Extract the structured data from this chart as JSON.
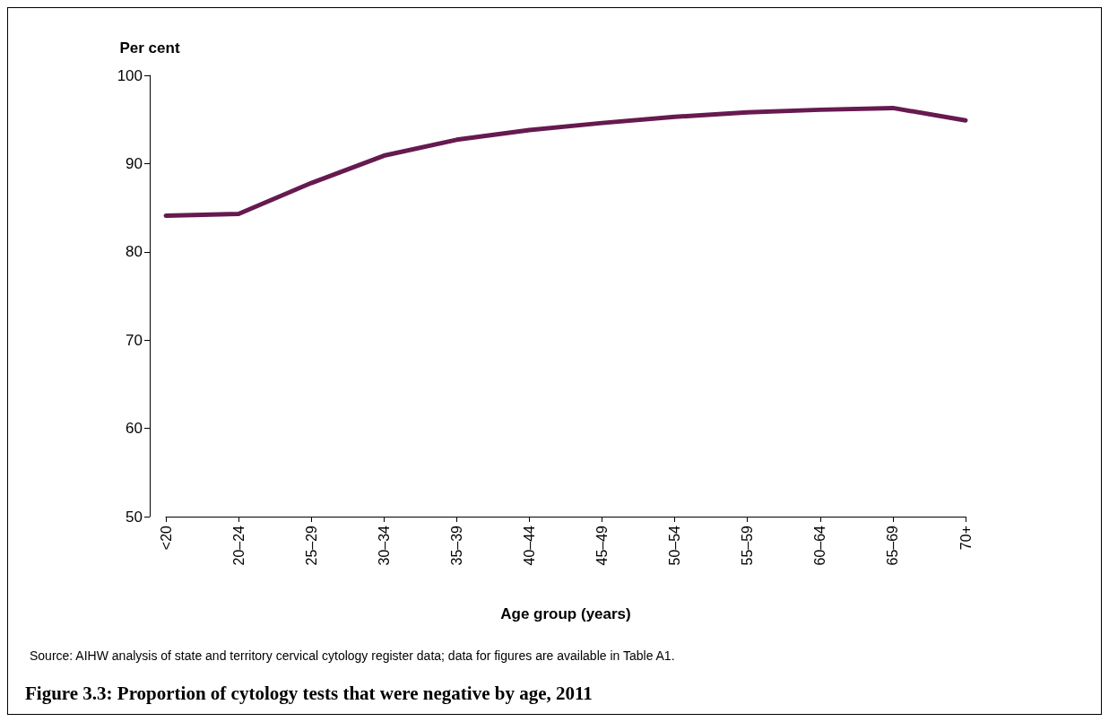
{
  "chart_data": {
    "type": "line",
    "title": "Figure 3.3: Proportion of cytology tests that were negative by age, 2011",
    "xlabel": "Age group (years)",
    "ylabel": "Per cent",
    "categories": [
      "<20",
      "20–24",
      "25–29",
      "30–34",
      "35–39",
      "40–44",
      "45–49",
      "50–54",
      "55–59",
      "60–64",
      "65–69",
      "70+"
    ],
    "series": [
      {
        "color": "#661a4f",
        "values": [
          84.1,
          84.3,
          87.8,
          90.9,
          92.7,
          93.8,
          94.6,
          95.3,
          95.8,
          96.1,
          96.3,
          94.9
        ]
      }
    ],
    "ylim": [
      50,
      100
    ],
    "yticks": [
      50,
      60,
      70,
      80,
      90,
      100
    ],
    "grid": false,
    "marker": "none",
    "line_style": "solid",
    "annotations": [
      "Source: AIHW analysis of state and territory cervical cytology register data; data for figures are available in Table A1."
    ]
  }
}
